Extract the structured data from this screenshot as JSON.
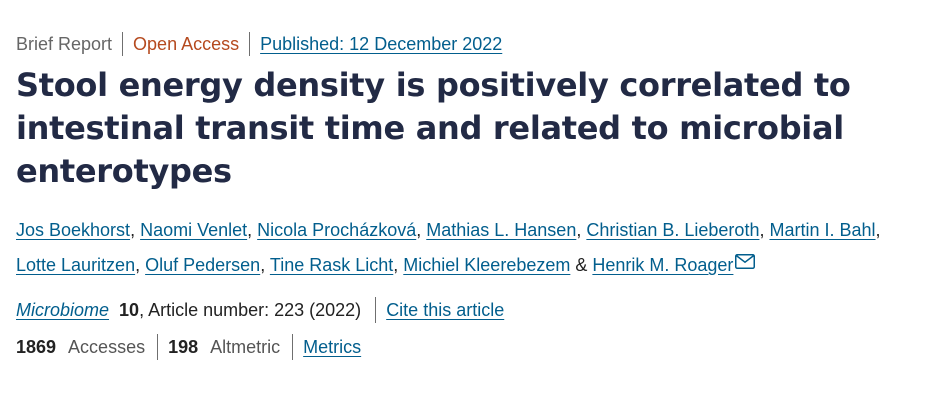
{
  "header": {
    "article_type": "Brief Report",
    "open_access": "Open Access",
    "published": "Published: 12 December 2022"
  },
  "title": "Stool energy density is positively correlated to intestinal transit time and related to microbial enterotypes",
  "authors": [
    "Jos Boekhorst",
    "Naomi Venlet",
    "Nicola Procházková",
    "Mathias L. Hansen",
    "Christian B. Lieberoth",
    "Martin I. Bahl",
    "Lotte Lauritzen",
    "Oluf Pedersen",
    "Tine Rask Licht",
    "Michiel Kleerebezem",
    "Henrik M. Roager"
  ],
  "author_sep": ", ",
  "author_last_sep": " & ",
  "icons": {
    "corresponding_author": "mail-icon"
  },
  "citation": {
    "journal": "Microbiome",
    "volume": "10",
    "article_number_text": ", Article number: 223 (2022)",
    "cite_label": "Cite this article"
  },
  "metrics": {
    "accesses_count": "1869",
    "accesses_label": "Accesses",
    "altmetric_count": "198",
    "altmetric_label": "Altmetric",
    "metrics_label": "Metrics"
  },
  "colors": {
    "link": "#025e8d",
    "title": "#222a45",
    "open_access": "#b54a1f"
  }
}
